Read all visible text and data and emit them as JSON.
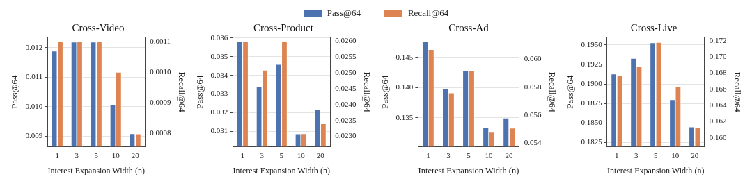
{
  "chart_data": [
    {
      "type": "bar",
      "title": "Cross-Video",
      "xlabel": "Interest Expansion Width (n)",
      "ylabel": "Pass@64",
      "y2label": "Recall@64",
      "categories": [
        "1",
        "3",
        "5",
        "10",
        "20"
      ],
      "legend": "top",
      "grid": "y",
      "series": [
        {
          "name": "Pass@64",
          "color": "#4c72b0",
          "values": [
            0.01189,
            0.0122,
            0.0122,
            0.01007,
            0.00909
          ]
        },
        {
          "name": "Recall@64",
          "color": "#dd8452",
          "axis": "y2",
          "values": [
            0.0011,
            0.0011,
            0.0011,
            0.001,
            0.0008
          ]
        }
      ],
      "ylim": [
        0.00865,
        0.01235
      ],
      "yticks": [
        0.009,
        {
          "value": 0.01,
          "label": "0.010"
        },
        0.011,
        0.012
      ],
      "y2lim": [
        0.000758,
        0.001113
      ],
      "y2ticks": [
        0.0008,
        0.0009,
        {
          "value": 0.001,
          "label": "0.0010"
        },
        0.0011
      ]
    },
    {
      "type": "bar",
      "title": "Cross-Product",
      "xlabel": "Interest Expansion Width (n)",
      "ylabel": "Pass@64",
      "y2label": "Recall@64",
      "categories": [
        "1",
        "3",
        "5",
        "10",
        "20"
      ],
      "grid": "y",
      "series": [
        {
          "color": "#4c72b0",
          "values": [
            0.0358,
            0.0334,
            0.03459,
            0.03088,
            0.0322
          ]
        },
        {
          "color": "#dd8452",
          "axis": "y2",
          "values": [
            0.026,
            0.02509,
            0.026,
            0.02309,
            0.0234
          ]
        }
      ],
      "ylim": [
        0.03019,
        0.03603
      ],
      "yticks": [
        0.031,
        0.032,
        0.033,
        0.034,
        0.035,
        0.036
      ],
      "y2lim": [
        0.02268,
        0.02612
      ],
      "y2ticks": [
        {
          "value": 0.023,
          "label": "0.0230"
        },
        0.0235,
        {
          "value": 0.024,
          "label": "0.0240"
        },
        0.0245,
        {
          "value": 0.025,
          "label": "0.0250"
        },
        0.0255,
        {
          "value": 0.026,
          "label": "0.0260"
        }
      ]
    },
    {
      "type": "bar",
      "title": "Cross-Ad",
      "xlabel": "Interest Expansion Width (n)",
      "ylabel": "Pass@64",
      "y2label": "Recall@64",
      "categories": [
        "1",
        "3",
        "5",
        "10",
        "20"
      ],
      "grid": "y",
      "series": [
        {
          "color": "#4c72b0",
          "values": [
            0.1477,
            0.1399,
            0.1428,
            0.1334,
            0.135
          ]
        },
        {
          "color": "#dd8452",
          "axis": "y2",
          "values": [
            0.0607,
            0.0576,
            0.0592,
            0.0548,
            0.0551
          ]
        }
      ],
      "ylim": [
        0.13025,
        0.1483
      ],
      "yticks": [
        0.135,
        {
          "value": 0.14,
          "label": "0.140"
        },
        0.145
      ],
      "y2lim": [
        0.05377,
        0.06155
      ],
      "y2ticks": [
        0.054,
        0.056,
        0.058,
        {
          "value": 0.06,
          "label": "0.060"
        }
      ]
    },
    {
      "type": "bar",
      "title": "Cross-Live",
      "xlabel": "Interest Expansion Width (n)",
      "ylabel": "Pass@64",
      "y2label": "Recall@64",
      "categories": [
        "1",
        "3",
        "5",
        "10",
        "20"
      ],
      "grid": "y",
      "series": [
        {
          "color": "#4c72b0",
          "values": [
            0.1913,
            0.1933,
            0.1953,
            0.188,
            0.1845
          ]
        },
        {
          "color": "#dd8452",
          "axis": "y2",
          "values": [
            0.1677,
            0.1688,
            0.1718,
            0.1663,
            0.1613
          ]
        }
      ],
      "ylim": [
        0.18197,
        0.19597
      ],
      "yticks": [
        0.1825,
        {
          "value": 0.185,
          "label": "0.1850"
        },
        0.1875,
        {
          "value": 0.19,
          "label": "0.1900"
        },
        0.1925,
        {
          "value": 0.195,
          "label": "0.1950"
        }
      ],
      "y2lim": [
        0.15893,
        0.1724
      ],
      "y2ticks": [
        {
          "value": 0.16,
          "label": "0.160"
        },
        0.162,
        0.164,
        0.166,
        0.168,
        {
          "value": 0.17,
          "label": "0.170"
        },
        0.172
      ]
    }
  ]
}
